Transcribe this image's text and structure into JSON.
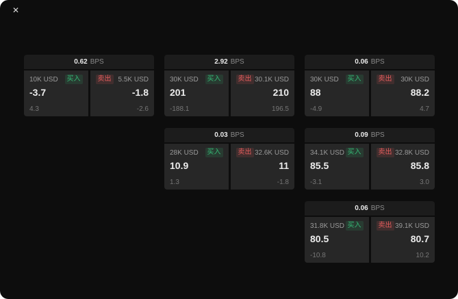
{
  "window": {
    "close_icon": "✕"
  },
  "labels": {
    "bps": "BPS",
    "buy": "买入",
    "sell": "卖出"
  },
  "colors": {
    "background": "#0d0d0d",
    "card_header": "#1c1c1c",
    "panel": "#272727",
    "buy_green": "#35b674",
    "sell_red": "#e25c5c"
  },
  "cards": [
    {
      "bps": "0.62",
      "buy_size": "10K USD",
      "sell_size": "5.5K USD",
      "buy_price": "-3.7",
      "sell_price": "-1.8",
      "buy_delta": "4.3",
      "sell_delta": "-2.6"
    },
    {
      "bps": "2.92",
      "buy_size": "30K USD",
      "sell_size": "30.1K USD",
      "buy_price": "201",
      "sell_price": "210",
      "buy_delta": "-188.1",
      "sell_delta": "196.5"
    },
    {
      "bps": "0.06",
      "buy_size": "30K USD",
      "sell_size": "30K USD",
      "buy_price": "88",
      "sell_price": "88.2",
      "buy_delta": "-4.9",
      "sell_delta": "4.7"
    },
    {
      "bps": "0.03",
      "buy_size": "28K USD",
      "sell_size": "32.6K USD",
      "buy_price": "10.9",
      "sell_price": "11",
      "buy_delta": "1.3",
      "sell_delta": "-1.8"
    },
    {
      "bps": "0.09",
      "buy_size": "34.1K USD",
      "sell_size": "32.8K USD",
      "buy_price": "85.5",
      "sell_price": "85.8",
      "buy_delta": "-3.1",
      "sell_delta": "3.0"
    },
    {
      "bps": "0.06",
      "buy_size": "31.8K USD",
      "sell_size": "39.1K USD",
      "buy_price": "80.5",
      "sell_price": "80.7",
      "buy_delta": "-10.8",
      "sell_delta": "10.2"
    }
  ]
}
